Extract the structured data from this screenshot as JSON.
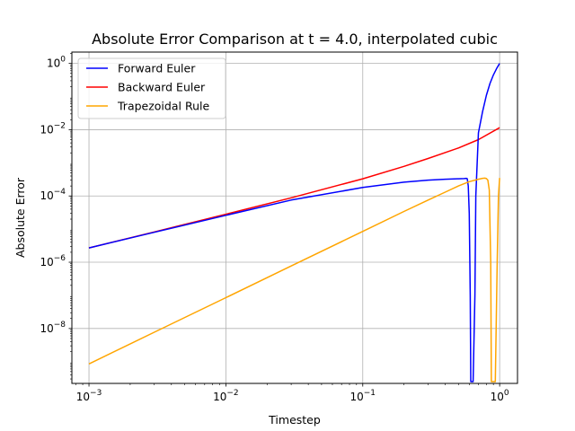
{
  "chart_data": {
    "type": "line",
    "title": "Absolute Error Comparison at t = 4.0, interpolated cubic",
    "xlabel": "Timestep",
    "ylabel": "Absolute Error",
    "xscale": "log",
    "yscale": "log",
    "xlim": [
      0.00075,
      1.35
    ],
    "ylim": [
      2.2e-10,
      2.2
    ],
    "grid": true,
    "legend_position": "top-left",
    "xticks": [
      {
        "base": "10",
        "exp": "−3",
        "value": 0.001
      },
      {
        "base": "10",
        "exp": "−2",
        "value": 0.01
      },
      {
        "base": "10",
        "exp": "−1",
        "value": 0.1
      },
      {
        "base": "10",
        "exp": "0",
        "value": 1
      }
    ],
    "yticks": [
      {
        "base": "10",
        "exp": "−8",
        "value": 1e-08
      },
      {
        "base": "10",
        "exp": "−6",
        "value": 1e-06
      },
      {
        "base": "10",
        "exp": "−4",
        "value": 0.0001
      },
      {
        "base": "10",
        "exp": "−2",
        "value": 0.01
      },
      {
        "base": "10",
        "exp": "0",
        "value": 1
      }
    ],
    "series": [
      {
        "name": "Forward Euler",
        "color": "#0000ff",
        "x": [
          0.001,
          0.003,
          0.01,
          0.03,
          0.1,
          0.2,
          0.3,
          0.4,
          0.5,
          0.55,
          0.57,
          0.58,
          0.59,
          0.6,
          0.61,
          0.615,
          0.64,
          0.66,
          0.67,
          0.7,
          0.75,
          0.8,
          0.85,
          0.9,
          0.95,
          1.0
        ],
        "y": [
          2.7e-06,
          8e-06,
          2.6e-05,
          7.5e-05,
          0.00018,
          0.00026,
          0.0003,
          0.00032,
          0.00033,
          0.000335,
          0.00034,
          0.00033,
          0.0002,
          3e-05,
          1e-07,
          2.5e-10,
          2.5e-10,
          1e-07,
          0.0001,
          0.008,
          0.035,
          0.11,
          0.25,
          0.45,
          0.7,
          1.0
        ]
      },
      {
        "name": "Backward Euler",
        "color": "#ff0000",
        "x": [
          0.001,
          0.003,
          0.01,
          0.03,
          0.1,
          0.2,
          0.3,
          0.5,
          0.7,
          1.0
        ],
        "y": [
          2.7e-06,
          8.2e-06,
          2.8e-05,
          8.8e-05,
          0.00033,
          0.00078,
          0.00135,
          0.0028,
          0.005,
          0.0115
        ]
      },
      {
        "name": "Trapezoidal Rule",
        "color": "#ffa500",
        "x": [
          0.001,
          0.003,
          0.01,
          0.03,
          0.1,
          0.2,
          0.3,
          0.4,
          0.5,
          0.6,
          0.7,
          0.75,
          0.78,
          0.8,
          0.82,
          0.84,
          0.86,
          0.87,
          0.875,
          0.9,
          0.93,
          0.96,
          0.98,
          1.0
        ],
        "y": [
          8.5e-10,
          7.7e-09,
          8.5e-08,
          7.7e-07,
          8.5e-06,
          3.4e-05,
          7.5e-05,
          0.00013,
          0.0002,
          0.00027,
          0.00032,
          0.00034,
          0.000345,
          0.000335,
          0.0003,
          0.00015,
          1e-06,
          2.5e-10,
          2.5e-10,
          2.5e-10,
          2.5e-10,
          1e-06,
          0.0001,
          0.00035
        ]
      }
    ]
  }
}
